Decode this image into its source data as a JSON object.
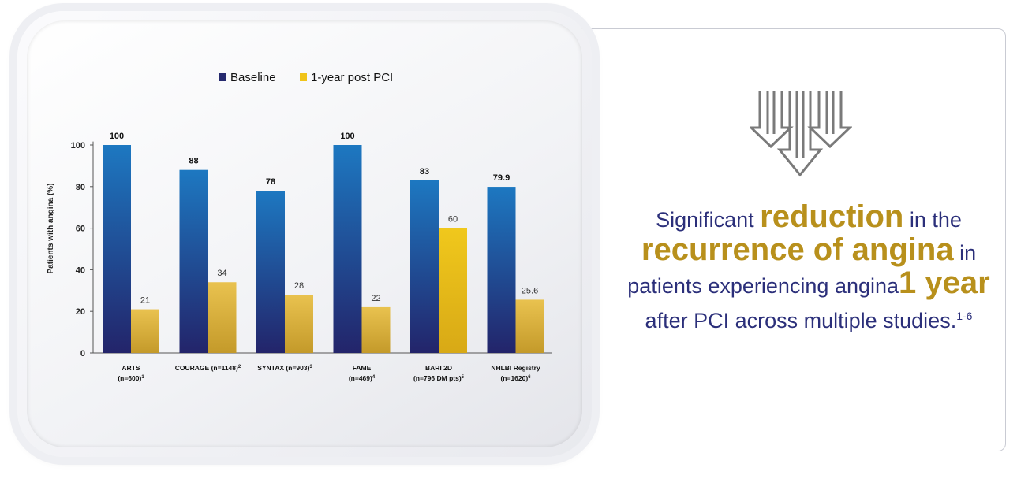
{
  "chart_data": {
    "type": "bar",
    "ylabel": "Patients with angina (%)",
    "ylim": [
      0,
      110
    ],
    "yticks": [
      0,
      20,
      40,
      60,
      80,
      100
    ],
    "categories": [
      {
        "line1": "ARTS",
        "line2": "(n=600)",
        "ref": "1"
      },
      {
        "line1": "COURAGE (n=1148)",
        "line2": "",
        "ref": "2"
      },
      {
        "line1": "SYNTAX (n=903)",
        "line2": "",
        "ref": "3"
      },
      {
        "line1": "FAME",
        "line2": "(n=469)",
        "ref": "4"
      },
      {
        "line1": "BARI 2D",
        "line2": "(n=796 DM pts)",
        "ref": "5"
      },
      {
        "line1": "NHLBI Registry",
        "line2": "(n=1620)",
        "ref": "6"
      }
    ],
    "series": [
      {
        "name": "Baseline",
        "values": [
          100,
          88,
          78,
          100,
          83,
          79.9
        ],
        "labels": [
          "100",
          "88",
          "78",
          "100",
          "83",
          "79.9"
        ]
      },
      {
        "name": "1-year post PCI",
        "values": [
          21,
          34,
          28,
          22,
          60,
          25.6
        ],
        "labels": [
          "21",
          "34",
          "28",
          "22",
          "60",
          "25.6"
        ]
      }
    ],
    "legend": {
      "position": "top"
    }
  },
  "colors": {
    "baseline_top": "#1d78c1",
    "baseline_bottom": "#23246a",
    "post_top": "#e9c24f",
    "post_bottom": "#c49a2a",
    "bari_post_top": "#f0c81c",
    "bari_post_bottom": "#d8a916",
    "legend_baseline": "#25296e",
    "legend_post": "#f0c419"
  },
  "headline": {
    "part1": "Significant ",
    "emph1": "reduction",
    "part2": " in the ",
    "emph2": "recurrence of angina",
    "part3": " in patients experiencing angina",
    "emph3": "1 year",
    "part4": " after PCI across multiple studies.",
    "refs": "1-6"
  }
}
